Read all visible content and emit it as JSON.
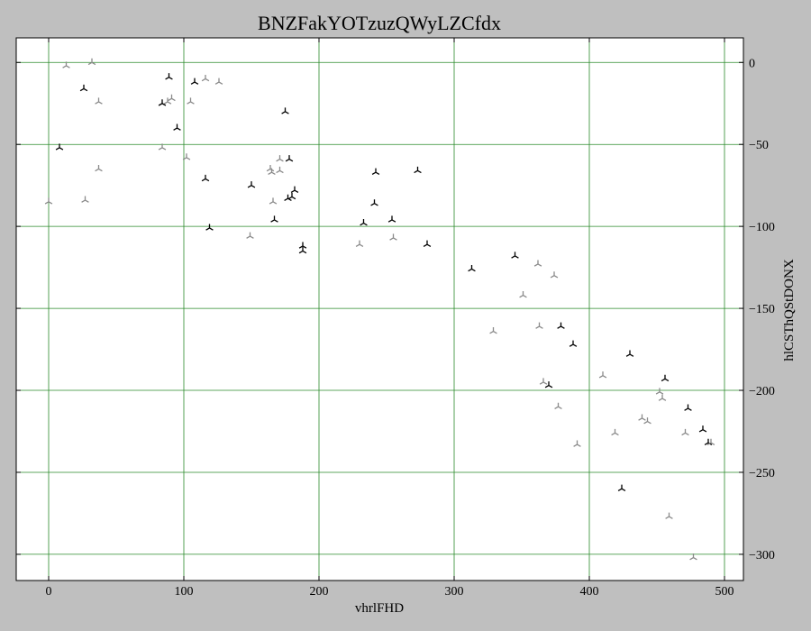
{
  "chart_data": {
    "type": "scatter",
    "title": "BNZFakYOTzuzQWyLZCfdx",
    "xlabel": "vhrlFHD",
    "ylabel": "hlCSThQStDONX",
    "xlim": [
      -24,
      514
    ],
    "ylim": [
      -316,
      15
    ],
    "x_ticks": [
      0,
      100,
      200,
      300,
      400,
      500
    ],
    "y_ticks": [
      0,
      -50,
      -100,
      -150,
      -200,
      -250,
      -300
    ],
    "grid": true,
    "grid_color": "#2a8a2a",
    "marker": "tri_down",
    "series": [
      {
        "color": "#000000",
        "points": [
          [
            8,
            -52
          ],
          [
            26,
            -16
          ],
          [
            84,
            -25
          ],
          [
            89,
            -9
          ],
          [
            95,
            -40
          ],
          [
            108,
            -12
          ],
          [
            116,
            -71
          ],
          [
            119,
            -101
          ],
          [
            150,
            -75
          ],
          [
            167,
            -96
          ],
          [
            175,
            -30
          ],
          [
            177,
            -83
          ],
          [
            178,
            -59
          ],
          [
            180,
            -82
          ],
          [
            182,
            -78
          ],
          [
            188,
            -112
          ],
          [
            188,
            -115
          ],
          [
            233,
            -98
          ],
          [
            241,
            -86
          ],
          [
            242,
            -67
          ],
          [
            254,
            -96
          ],
          [
            273,
            -66
          ],
          [
            280,
            -111
          ],
          [
            313,
            -126
          ],
          [
            345,
            -118
          ],
          [
            370,
            -197
          ],
          [
            379,
            -161
          ],
          [
            388,
            -172
          ],
          [
            430,
            -178
          ],
          [
            424,
            -260
          ],
          [
            456,
            -193
          ],
          [
            473,
            -211
          ],
          [
            484,
            -224
          ],
          [
            488,
            -232
          ]
        ]
      },
      {
        "color": "#8a8a8a",
        "points": [
          [
            0,
            -85
          ],
          [
            13,
            -2
          ],
          [
            27,
            -84
          ],
          [
            32,
            0
          ],
          [
            37,
            -65
          ],
          [
            37,
            -24
          ],
          [
            84,
            -52
          ],
          [
            88,
            -24
          ],
          [
            91,
            -22
          ],
          [
            102,
            -58
          ],
          [
            105,
            -24
          ],
          [
            116,
            -10
          ],
          [
            126,
            -12
          ],
          [
            149,
            -106
          ],
          [
            164,
            -65
          ],
          [
            165,
            -67
          ],
          [
            166,
            -85
          ],
          [
            171,
            -59
          ],
          [
            171,
            -66
          ],
          [
            230,
            -111
          ],
          [
            255,
            -107
          ],
          [
            329,
            -164
          ],
          [
            351,
            -142
          ],
          [
            362,
            -123
          ],
          [
            363,
            -161
          ],
          [
            366,
            -195
          ],
          [
            374,
            -130
          ],
          [
            377,
            -210
          ],
          [
            391,
            -233
          ],
          [
            410,
            -191
          ],
          [
            419,
            -226
          ],
          [
            439,
            -217
          ],
          [
            443,
            -219
          ],
          [
            452,
            -201
          ],
          [
            454,
            -205
          ],
          [
            459,
            -277
          ],
          [
            471,
            -226
          ],
          [
            477,
            -302
          ],
          [
            490,
            -232
          ]
        ]
      }
    ]
  }
}
